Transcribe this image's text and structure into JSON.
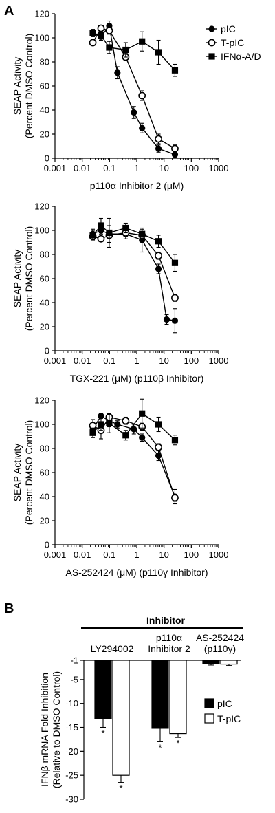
{
  "panels": [
    {
      "letter": "A"
    },
    {
      "letter": "B"
    }
  ],
  "chart_data": [
    {
      "type": "line",
      "panel": "A",
      "xscale": "log",
      "xlim": [
        0.001,
        1000
      ],
      "ylim": [
        0,
        120
      ],
      "xticks": [
        "0.001",
        "0.01",
        "0.1",
        "1",
        "10",
        "100",
        "1000"
      ],
      "yticks": [
        "0",
        "20",
        "40",
        "60",
        "80",
        "100",
        "120"
      ],
      "xlabel": "p110α Inhibitor 2 (μM)",
      "ylabel": [
        "SEAP Activity",
        "(Percent DMSO Control)"
      ],
      "legend": "top-right",
      "x": [
        0.0244,
        0.0488,
        0.0977,
        0.195,
        0.391,
        0.781,
        1.5625,
        6.25,
        25
      ],
      "series": [
        {
          "name": "pIC",
          "marker": "filled-circle",
          "values": [
            104,
            101,
            110,
            71,
            38,
            25,
            8,
            3
          ],
          "errors": [
            3,
            3,
            4,
            5,
            5,
            4,
            3,
            2
          ],
          "x": [
            0.0244,
            0.0488,
            0.0977,
            0.195,
            0.781,
            1.5625,
            6.25,
            25
          ]
        },
        {
          "name": "T-pIC",
          "marker": "open-circle",
          "values": [
            96,
            108,
            106,
            84,
            52,
            16,
            8
          ],
          "errors": [
            2,
            2,
            3,
            3,
            4,
            4,
            3
          ],
          "x": [
            0.0244,
            0.0488,
            0.0977,
            0.391,
            1.5625,
            6.25,
            25
          ]
        },
        {
          "name": "IFNα-A/D",
          "marker": "filled-square",
          "values": [
            104,
            102,
            92,
            90,
            97,
            88,
            73
          ],
          "errors": [
            3,
            3,
            5,
            6,
            8,
            10,
            5
          ],
          "x": [
            0.0244,
            0.0488,
            0.0977,
            0.391,
            1.5625,
            6.25,
            25
          ]
        }
      ]
    },
    {
      "type": "line",
      "panel": "A",
      "xscale": "log",
      "xlim": [
        0.001,
        1000
      ],
      "ylim": [
        0,
        120
      ],
      "xticks": [
        "0.001",
        "0.01",
        "0.1",
        "1",
        "10",
        "100",
        "1000"
      ],
      "yticks": [
        "0",
        "20",
        "40",
        "60",
        "80",
        "100",
        "120"
      ],
      "xlabel": "TGX-221 (μM) (p110β Inhibitor)",
      "ylabel": [
        "SEAP Activity",
        "(Percent DMSO Control)"
      ],
      "series": [
        {
          "name": "pIC",
          "marker": "filled-circle",
          "x": [
            0.0244,
            0.0488,
            0.0977,
            0.391,
            1.5625,
            6.25,
            12.5,
            25
          ],
          "values": [
            97,
            100,
            97,
            97,
            92,
            68,
            26,
            25
          ],
          "errors": [
            4,
            3,
            7,
            4,
            10,
            4,
            4,
            10
          ]
        },
        {
          "name": "T-pIC",
          "marker": "open-circle",
          "x": [
            0.0244,
            0.0488,
            0.0977,
            0.391,
            1.5625,
            6.25,
            25
          ],
          "values": [
            95,
            93,
            96,
            98,
            96,
            79,
            44
          ],
          "errors": [
            3,
            2,
            3,
            3,
            3,
            3,
            3
          ]
        },
        {
          "name": "IFNα-A/D",
          "marker": "filled-square",
          "x": [
            0.0244,
            0.0488,
            0.0977,
            0.391,
            1.5625,
            6.25,
            25
          ],
          "values": [
            96,
            104,
            98,
            102,
            97,
            91,
            73
          ],
          "errors": [
            4,
            6,
            12,
            4,
            4,
            5,
            7
          ]
        }
      ]
    },
    {
      "type": "line",
      "panel": "A",
      "xscale": "log",
      "xlim": [
        0.001,
        1000
      ],
      "ylim": [
        0,
        120
      ],
      "xticks": [
        "0.001",
        "0.01",
        "0.1",
        "1",
        "10",
        "100",
        "1000"
      ],
      "yticks": [
        "0",
        "20",
        "40",
        "60",
        "80",
        "100",
        "120"
      ],
      "xlabel": "AS-252424 (μM) (p110γ Inhibitor)",
      "ylabel": [
        "SEAP Activity",
        "(Percent DMSO Control)"
      ],
      "series": [
        {
          "name": "pIC",
          "marker": "filled-circle",
          "x": [
            0.0244,
            0.0488,
            0.0977,
            0.195,
            0.781,
            1.5625,
            6.25,
            25
          ],
          "values": [
            96,
            107,
            103,
            100,
            96,
            89,
            74,
            40
          ],
          "errors": [
            3,
            2,
            5,
            3,
            4,
            3,
            4,
            6
          ]
        },
        {
          "name": "T-pIC",
          "marker": "open-circle",
          "x": [
            0.0244,
            0.0488,
            0.0977,
            0.391,
            1.5625,
            6.25,
            25
          ],
          "values": [
            99,
            95,
            106,
            103,
            98,
            81,
            39
          ],
          "errors": [
            5,
            7,
            3,
            3,
            3,
            3,
            3
          ]
        },
        {
          "name": "IFNα-A/D",
          "marker": "filled-square",
          "x": [
            0.0244,
            0.0488,
            0.0977,
            0.391,
            1.5625,
            6.25,
            25
          ],
          "values": [
            93,
            100,
            101,
            91,
            109,
            100,
            87
          ],
          "errors": [
            4,
            5,
            8,
            4,
            12,
            6,
            4
          ]
        }
      ]
    },
    {
      "type": "bar",
      "panel": "B",
      "group_title": "Inhibitor",
      "categories": [
        [
          "LY294002"
        ],
        [
          "p110α",
          "Inhibitor 2"
        ],
        [
          "AS-252424",
          "(p110γ)"
        ]
      ],
      "ylim": [
        -30,
        -1
      ],
      "yticks": [
        "-1",
        "-5",
        "-10",
        "-15",
        "-20",
        "-25",
        "-30"
      ],
      "ylabel": [
        "IFNβ mRNA Fold Inhibition",
        "(Relative to DMSO Control)"
      ],
      "legend": "right",
      "series": [
        {
          "name": "pIC",
          "fill": "#000000",
          "values": [
            -13.2,
            -15.2,
            -1.7
          ],
          "errors": [
            1.8,
            2.8,
            0.3
          ],
          "marks": [
            "*",
            "*",
            ""
          ]
        },
        {
          "name": "T-pIC",
          "fill": "#ffffff",
          "values": [
            -25.0,
            -16.3,
            -1.8
          ],
          "errors": [
            1.5,
            0.8,
            0.3
          ],
          "marks": [
            "*",
            "*",
            ""
          ]
        }
      ]
    }
  ]
}
